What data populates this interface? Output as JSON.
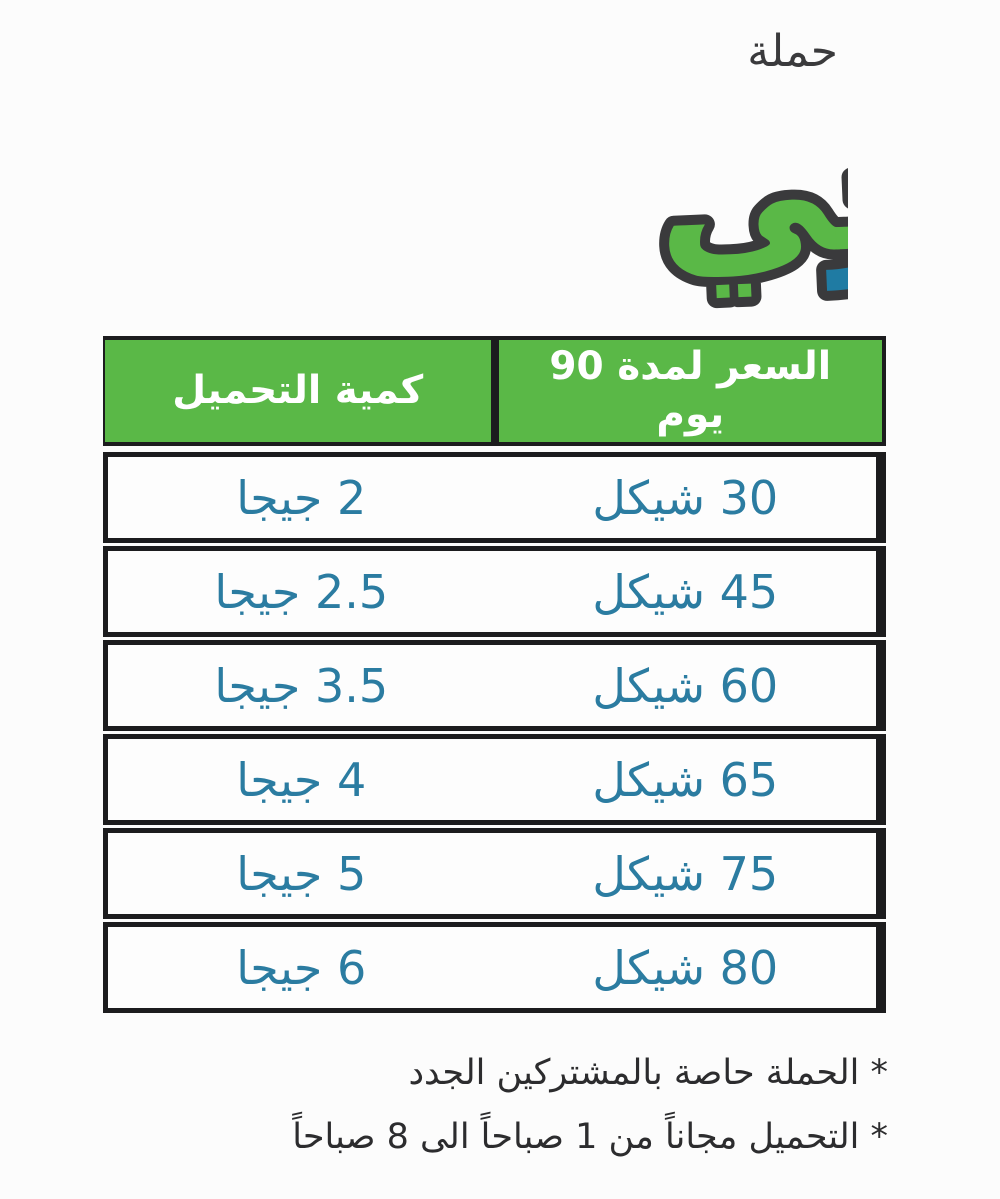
{
  "campaign_label": "حملة",
  "logo": {
    "text_blue": "سر",
    "text_green": "عنجي",
    "full_text": "سرعنجي",
    "colors": {
      "green": "#5ab847",
      "blue": "#1f7ba3",
      "outline": "#3a3a3c"
    }
  },
  "table": {
    "headers": {
      "quantity": "كمية التحميل",
      "price": "السعر لمدة 90 يوم"
    },
    "rows": [
      {
        "quantity": "2 جيجا",
        "price": "30 شيكل"
      },
      {
        "quantity": "2.5 جيجا",
        "price": "45 شيكل"
      },
      {
        "quantity": "3.5 جيجا",
        "price": "60 شيكل"
      },
      {
        "quantity": "4 جيجا",
        "price": "65 شيكل"
      },
      {
        "quantity": "5 جيجا",
        "price": "75 شيكل"
      },
      {
        "quantity": "6 جيجا",
        "price": "80 شيكل"
      }
    ],
    "colors": {
      "header_bg": "#5ab847",
      "header_text": "#ffffff",
      "cell_text": "#2b7ca1",
      "border": "#1c1c1e",
      "cell_bg": "#fdfdfd"
    }
  },
  "footnotes": [
    "* الحملة حاصة بالمشتركين الجدد",
    "* التحميل مجاناً من 1 صباحاً الى 8 صباحاً"
  ]
}
